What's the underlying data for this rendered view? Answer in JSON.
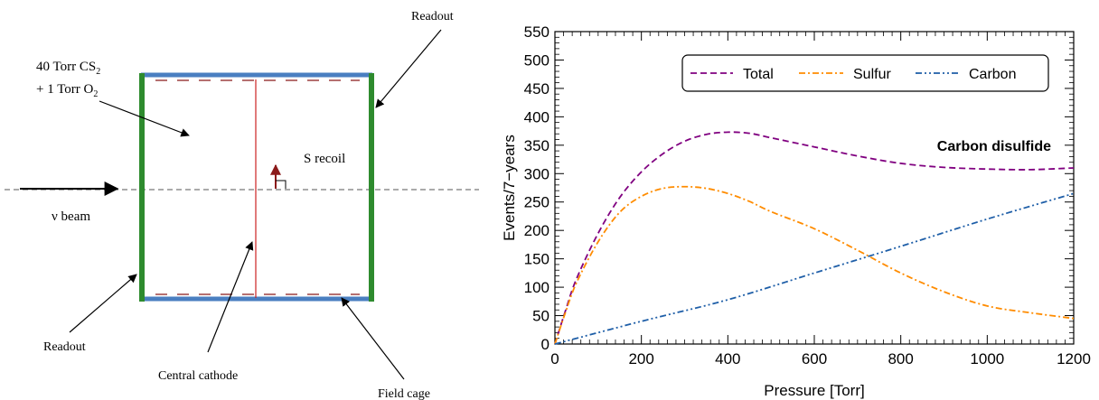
{
  "diagram": {
    "gas_line1_prefix": "40 Torr CS",
    "gas_line1_sub": "2",
    "gas_line2_prefix": "+ 1 Torr O",
    "gas_line2_sub": "2",
    "readout_top": "Readout",
    "readout_bottom": "Readout",
    "s_recoil": "S recoil",
    "beam": "ν beam",
    "central_cathode": "Central cathode",
    "field_cage": "Field cage"
  },
  "colors": {
    "readout_plane": "#2e8b2e",
    "field_cage_plane": "#4a7fc1",
    "cathode": "#cc2222",
    "recoil_arrow": "#8b1a1a",
    "total": "#800080",
    "sulfur": "#ff8c00",
    "carbon": "#1f5fa8"
  },
  "chart_data": {
    "type": "line",
    "title": "",
    "annotation": "Carbon disulfide",
    "xlabel": "Pressure [Torr]",
    "ylabel": "Events/7−years",
    "xlim": [
      0,
      1200
    ],
    "ylim": [
      0,
      550
    ],
    "xticks": [
      0,
      200,
      400,
      600,
      800,
      1000,
      1200
    ],
    "yticks": [
      0,
      50,
      100,
      150,
      200,
      250,
      300,
      350,
      400,
      450,
      500,
      550
    ],
    "legend_placement": "top-right",
    "grid": false,
    "series": [
      {
        "name": "Total",
        "style": "dashed",
        "x": [
          0,
          25,
          50,
          100,
          150,
          200,
          250,
          300,
          350,
          400,
          450,
          500,
          600,
          700,
          800,
          900,
          1000,
          1100,
          1200
        ],
        "values": [
          0,
          60,
          115,
          195,
          258,
          303,
          335,
          357,
          369,
          373,
          371,
          363,
          347,
          331,
          318,
          311,
          308,
          307,
          310
        ]
      },
      {
        "name": "Sulfur",
        "style": "dashdot",
        "x": [
          0,
          25,
          50,
          100,
          150,
          200,
          250,
          300,
          350,
          400,
          450,
          500,
          600,
          700,
          800,
          900,
          1000,
          1100,
          1200
        ],
        "values": [
          0,
          57,
          108,
          180,
          232,
          260,
          274,
          277,
          274,
          265,
          251,
          233,
          203,
          165,
          125,
          92,
          67,
          55,
          45
        ]
      },
      {
        "name": "Carbon",
        "style": "dashdotdot",
        "x": [
          0,
          200,
          400,
          600,
          800,
          1000,
          1200
        ],
        "values": [
          0,
          40,
          78,
          125,
          172,
          220,
          265
        ]
      }
    ]
  }
}
